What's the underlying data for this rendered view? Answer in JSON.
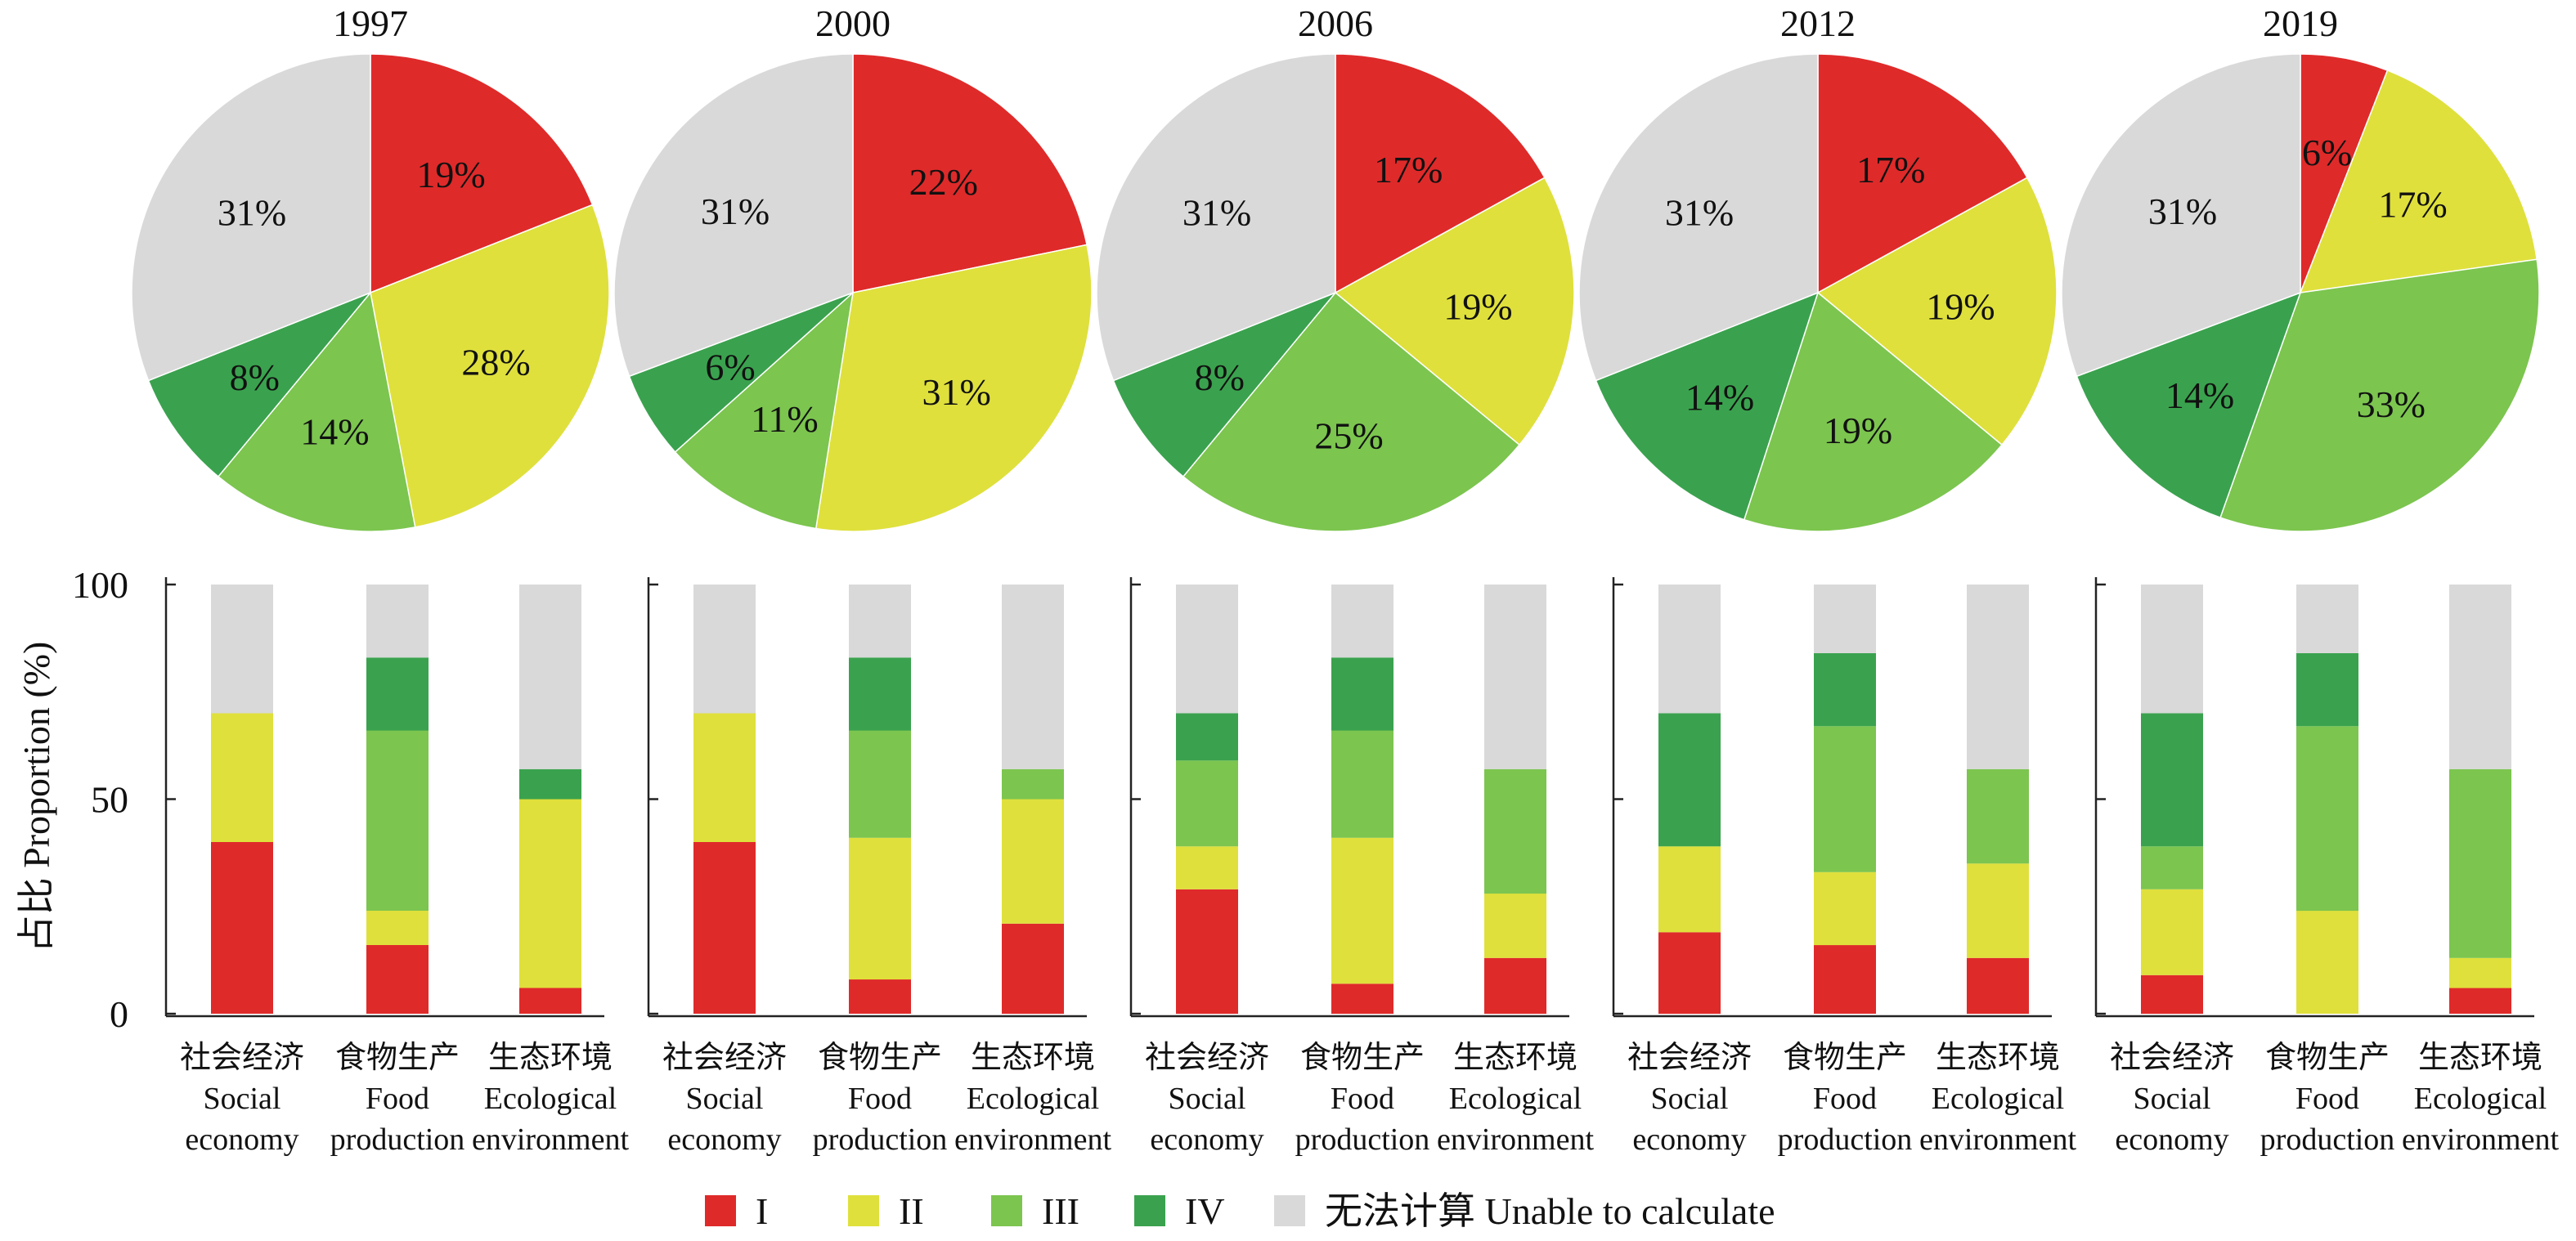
{
  "legend": {
    "items": [
      {
        "key": "I",
        "label": "I",
        "color": "#df2a2a"
      },
      {
        "key": "II",
        "label": "II",
        "color": "#dfe03c"
      },
      {
        "key": "III",
        "label": "III",
        "color": "#7cc54f"
      },
      {
        "key": "IV",
        "label": "IV",
        "color": "#3aa24e"
      },
      {
        "key": "U",
        "label": "无法计算 Unable to calculate",
        "color": "#d9d9d9"
      }
    ]
  },
  "chart_data": [
    {
      "type": "pie",
      "title_values": [
        "1997",
        "2000",
        "2006",
        "2012",
        "2019"
      ],
      "slice_order": [
        "I",
        "II",
        "III",
        "IV",
        "U"
      ],
      "panels": [
        {
          "year": "1997",
          "values": [
            19,
            28,
            14,
            8,
            31
          ],
          "labels": [
            "19%",
            "28%",
            "14%",
            "8%",
            "31%"
          ]
        },
        {
          "year": "2000",
          "values": [
            22,
            31,
            11,
            6,
            31
          ],
          "labels": [
            "22%",
            "31%",
            "11%",
            "6%",
            "31%"
          ]
        },
        {
          "year": "2006",
          "values": [
            17,
            19,
            25,
            8,
            31
          ],
          "labels": [
            "17%",
            "19%",
            "25%",
            "8%",
            "31%"
          ]
        },
        {
          "year": "2012",
          "values": [
            17,
            19,
            19,
            14,
            31
          ],
          "labels": [
            "17%",
            "19%",
            "19%",
            "14%",
            "31%"
          ]
        },
        {
          "year": "2019",
          "values": [
            6,
            17,
            33,
            14,
            31
          ],
          "labels": [
            "6%",
            "17%",
            "33%",
            "14%",
            "31%"
          ]
        }
      ]
    },
    {
      "type": "bar",
      "stacked": true,
      "ylabel": "占比 Proportion (%)",
      "ylim": [
        0,
        100
      ],
      "yticks": [
        "0",
        "50",
        "100"
      ],
      "categories": [
        {
          "zh": "社会经济",
          "en1": "Social",
          "en2": "economy"
        },
        {
          "zh": "食物生产",
          "en1": "Food",
          "en2": "production"
        },
        {
          "zh": "生态环境",
          "en1": "Ecological",
          "en2": "environment"
        }
      ],
      "series_order": [
        "I",
        "II",
        "III",
        "IV",
        "U"
      ],
      "panels": [
        {
          "year": "1997",
          "stacks": [
            [
              40,
              30,
              0,
              0,
              30
            ],
            [
              16,
              8,
              42,
              17,
              17
            ],
            [
              6,
              44,
              0,
              7,
              43
            ]
          ]
        },
        {
          "year": "2000",
          "stacks": [
            [
              40,
              30,
              0,
              0,
              30
            ],
            [
              8,
              33,
              25,
              17,
              17
            ],
            [
              21,
              29,
              7,
              0,
              43
            ]
          ]
        },
        {
          "year": "2006",
          "stacks": [
            [
              29,
              10,
              20,
              11,
              30
            ],
            [
              7,
              34,
              25,
              17,
              17
            ],
            [
              13,
              15,
              29,
              0,
              43
            ]
          ]
        },
        {
          "year": "2012",
          "stacks": [
            [
              19,
              20,
              0,
              31,
              30
            ],
            [
              16,
              17,
              34,
              17,
              16
            ],
            [
              13,
              22,
              22,
              0,
              43
            ]
          ]
        },
        {
          "year": "2019",
          "stacks": [
            [
              9,
              20,
              10,
              31,
              30
            ],
            [
              0,
              24,
              43,
              17,
              16
            ],
            [
              6,
              7,
              44,
              0,
              43
            ]
          ]
        }
      ]
    }
  ]
}
